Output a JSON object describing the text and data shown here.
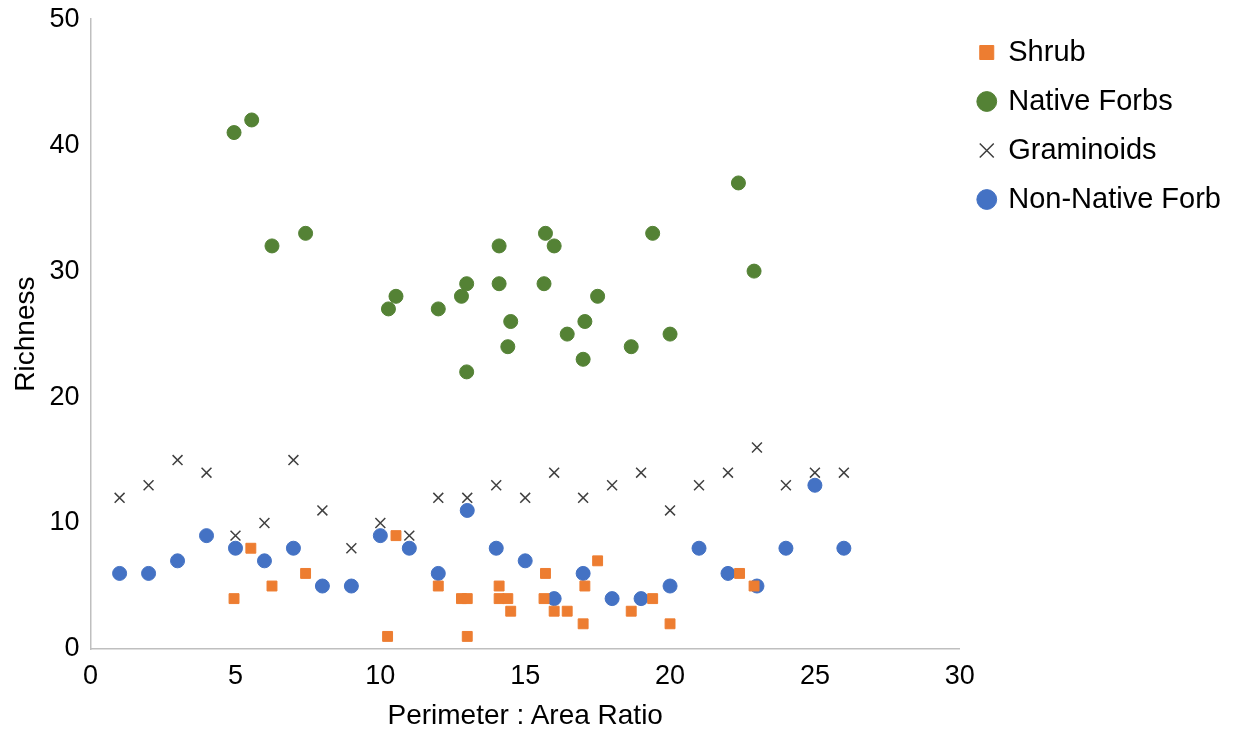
{
  "chart_data": {
    "type": "scatter",
    "xlabel": "Perimeter : Area Ratio",
    "ylabel": "Richness",
    "xlim": [
      0,
      30
    ],
    "xticks": [
      0,
      5,
      10,
      15,
      20,
      25,
      30
    ],
    "ylim": [
      0,
      50
    ],
    "yticks": [
      0,
      10,
      20,
      30,
      40,
      50
    ],
    "grid": false,
    "legend": "top right",
    "series": [
      {
        "name": "Shrub",
        "color": "#ed7d31",
        "marker": "square",
        "x": [
          4.95,
          5.53,
          6.26,
          7.42,
          10.25,
          10.54,
          12.0,
          12.8,
          13.0,
          13.0,
          14.1,
          14.1,
          14.4,
          14.5,
          15.7,
          15.65,
          16.0,
          16.45,
          17.06,
          17.0,
          17.5,
          18.66,
          19.4,
          20.0,
          22.4,
          22.9
        ],
        "values": [
          4,
          8,
          5,
          6,
          1,
          9,
          5,
          4,
          4,
          1,
          5,
          4,
          4,
          3,
          6,
          4,
          3,
          3,
          5,
          2,
          7,
          3,
          4,
          2,
          6,
          5
        ]
      },
      {
        "name": "Native Forbs",
        "color": "#548235",
        "marker": "circle",
        "x": [
          4.95,
          5.56,
          6.26,
          7.42,
          10.28,
          10.54,
          12.0,
          12.8,
          12.98,
          12.98,
          14.1,
          14.1,
          14.5,
          14.4,
          15.7,
          15.65,
          16.0,
          16.45,
          17.06,
          17.0,
          17.5,
          18.66,
          19.4,
          20.0,
          22.36,
          22.9
        ],
        "values": [
          41,
          42,
          32,
          33,
          27,
          28,
          27,
          28,
          29,
          22,
          32,
          29,
          26,
          24,
          33,
          29,
          32,
          25,
          26,
          23,
          28,
          24,
          33,
          25,
          37,
          30
        ]
      },
      {
        "name": "Graminoids",
        "color": "#404040",
        "marker": "cross",
        "x": [
          1,
          2,
          3,
          4,
          5,
          6,
          7,
          8,
          9,
          10,
          11,
          12,
          13,
          14,
          15,
          16,
          17,
          18,
          19,
          20,
          21,
          22,
          23,
          24,
          25,
          26
        ],
        "values": [
          12,
          13,
          15,
          14,
          9,
          10,
          15,
          11,
          8,
          10,
          9,
          12,
          12,
          13,
          12,
          14,
          12,
          13,
          14,
          11,
          13,
          14,
          16,
          13,
          14,
          14
        ]
      },
      {
        "name": "Non-Native Forb",
        "color": "#4472c4",
        "marker": "circle",
        "x": [
          1,
          2,
          3,
          4,
          5,
          6,
          7,
          8,
          9,
          10,
          11,
          12,
          13,
          14,
          15,
          16,
          17,
          18,
          19,
          20,
          21,
          22,
          23,
          24,
          25,
          26
        ],
        "values": [
          6,
          6,
          7,
          9,
          8,
          7,
          8,
          5,
          5,
          9,
          8,
          6,
          11,
          8,
          7,
          4,
          6,
          4,
          4,
          5,
          8,
          6,
          5,
          8,
          13,
          8
        ]
      }
    ]
  }
}
